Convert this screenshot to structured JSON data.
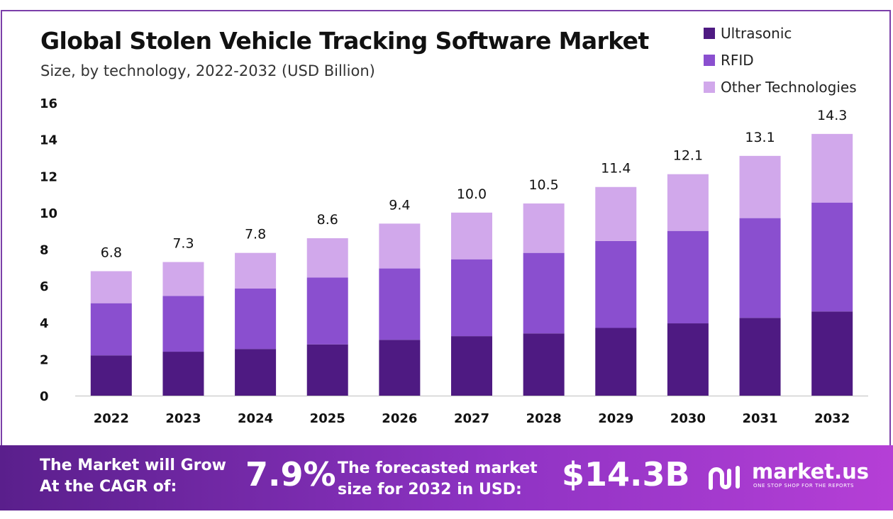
{
  "chart_data": {
    "type": "bar",
    "stacked": true,
    "title": "Global Stolen Vehicle Tracking Software Market",
    "subtitle": "Size, by technology, 2022-2032 (USD Billion)",
    "categories": [
      "2022",
      "2023",
      "2024",
      "2025",
      "2026",
      "2027",
      "2028",
      "2029",
      "2030",
      "2031",
      "2032"
    ],
    "series": [
      {
        "name": "Ultrasonic",
        "color": "#4e1a82",
        "values": [
          2.2,
          2.4,
          2.55,
          2.8,
          3.05,
          3.25,
          3.4,
          3.7,
          3.95,
          4.25,
          4.6
        ]
      },
      {
        "name": "RFID",
        "color": "#8a4fcf",
        "values": [
          2.85,
          3.05,
          3.3,
          3.65,
          3.9,
          4.2,
          4.4,
          4.75,
          5.05,
          5.45,
          5.95
        ]
      },
      {
        "name": "Other Technologies",
        "color": "#d1a8eb",
        "values": [
          1.75,
          1.85,
          1.95,
          2.15,
          2.45,
          2.55,
          2.7,
          2.95,
          3.1,
          3.4,
          3.75
        ]
      }
    ],
    "totals": [
      "6.8",
      "7.3",
      "7.8",
      "8.6",
      "9.4",
      "10.0",
      "10.5",
      "11.4",
      "12.1",
      "13.1",
      "14.3"
    ],
    "ylim": [
      0,
      16
    ],
    "yticks": [
      0,
      2,
      4,
      6,
      8,
      10,
      12,
      14,
      16
    ],
    "xlabel": "",
    "ylabel": "",
    "grid": false,
    "legend_position": "top-right"
  },
  "footer": {
    "cagr_label_line1": "The Market will Grow",
    "cagr_label_line2": "At the CAGR of:",
    "cagr_value": "7.9%",
    "forecast_label_line1": "The forecasted market",
    "forecast_label_line2": "size for 2032 in USD:",
    "forecast_value": "$14.3B",
    "brand_name": "market.us",
    "brand_tagline": "ONE STOP SHOP FOR THE REPORTS"
  }
}
